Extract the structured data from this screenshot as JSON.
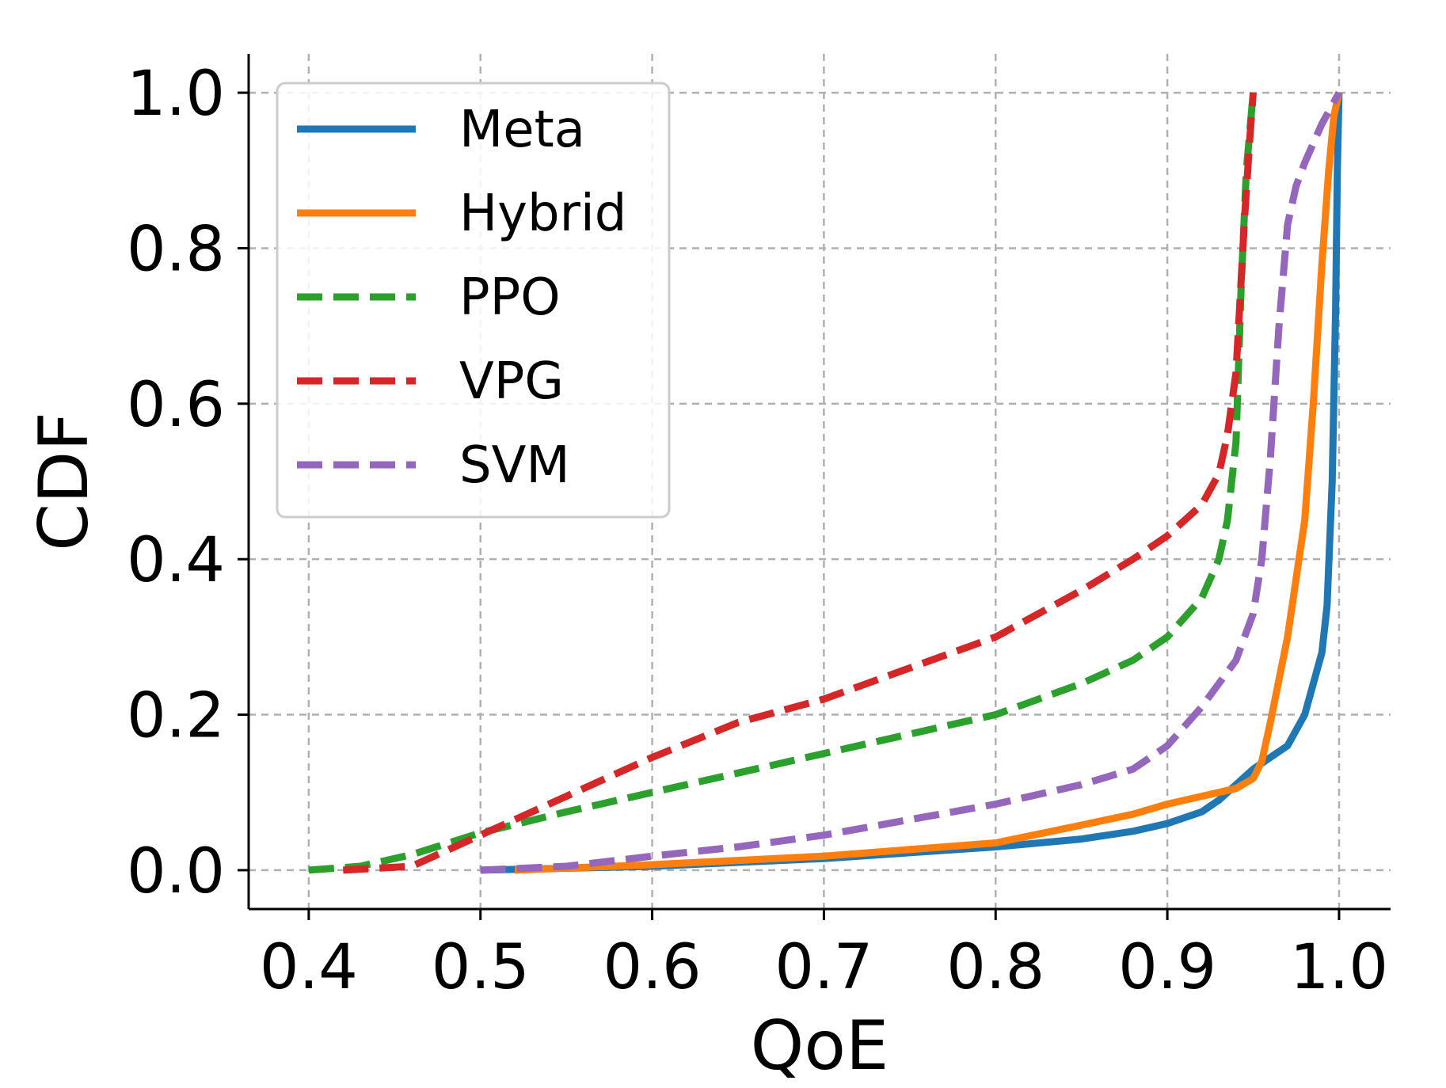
{
  "chart_data": {
    "type": "line",
    "title": "",
    "xlabel": "QoE",
    "ylabel": "CDF",
    "xlim": [
      0.365,
      1.03
    ],
    "ylim": [
      -0.05,
      1.05
    ],
    "xticks": [
      0.4,
      0.5,
      0.6,
      0.7,
      0.8,
      0.9,
      1.0
    ],
    "yticks": [
      0.0,
      0.2,
      0.4,
      0.6,
      0.8,
      1.0
    ],
    "xtick_labels": [
      "0.4",
      "0.5",
      "0.6",
      "0.7",
      "0.8",
      "0.9",
      "1.0"
    ],
    "ytick_labels": [
      "0.0",
      "0.2",
      "0.4",
      "0.6",
      "0.8",
      "1.0"
    ],
    "grid": true,
    "legend_position": "top-left",
    "series": [
      {
        "name": "Meta",
        "color": "#1f77b4",
        "dashed": false,
        "x": [
          0.5,
          0.6,
          0.7,
          0.8,
          0.85,
          0.88,
          0.9,
          0.92,
          0.93,
          0.94,
          0.95,
          0.96,
          0.97,
          0.98,
          0.99,
          0.993,
          0.996,
          0.998,
          0.999,
          1.0
        ],
        "y": [
          0.0,
          0.005,
          0.015,
          0.03,
          0.04,
          0.05,
          0.06,
          0.075,
          0.09,
          0.11,
          0.13,
          0.145,
          0.16,
          0.2,
          0.28,
          0.34,
          0.5,
          0.72,
          0.9,
          1.0
        ]
      },
      {
        "name": "Hybrid",
        "color": "#ff7f0e",
        "dashed": false,
        "x": [
          0.52,
          0.6,
          0.7,
          0.8,
          0.85,
          0.88,
          0.9,
          0.92,
          0.94,
          0.95,
          0.955,
          0.96,
          0.97,
          0.98,
          0.985,
          0.99,
          0.994,
          0.997,
          1.0
        ],
        "y": [
          0.0,
          0.007,
          0.018,
          0.035,
          0.058,
          0.072,
          0.085,
          0.095,
          0.105,
          0.118,
          0.14,
          0.19,
          0.3,
          0.45,
          0.6,
          0.78,
          0.9,
          0.97,
          1.0
        ]
      },
      {
        "name": "PPO",
        "color": "#2ca02c",
        "dashed": true,
        "x": [
          0.4,
          0.43,
          0.46,
          0.5,
          0.55,
          0.6,
          0.65,
          0.7,
          0.75,
          0.8,
          0.85,
          0.88,
          0.9,
          0.92,
          0.93,
          0.935,
          0.94,
          0.943,
          0.946,
          0.95
        ],
        "y": [
          0.0,
          0.005,
          0.02,
          0.048,
          0.075,
          0.1,
          0.125,
          0.15,
          0.175,
          0.2,
          0.24,
          0.27,
          0.3,
          0.35,
          0.4,
          0.45,
          0.55,
          0.75,
          0.9,
          1.0
        ]
      },
      {
        "name": "VPG",
        "color": "#d62728",
        "dashed": true,
        "x": [
          0.42,
          0.46,
          0.5,
          0.55,
          0.6,
          0.65,
          0.7,
          0.75,
          0.8,
          0.85,
          0.88,
          0.9,
          0.92,
          0.93,
          0.935,
          0.94,
          0.942,
          0.945,
          0.948,
          0.95
        ],
        "y": [
          0.0,
          0.005,
          0.045,
          0.095,
          0.145,
          0.19,
          0.22,
          0.26,
          0.3,
          0.36,
          0.4,
          0.43,
          0.47,
          0.51,
          0.56,
          0.64,
          0.72,
          0.84,
          0.94,
          1.0
        ]
      },
      {
        "name": "SVM",
        "color": "#9467bd",
        "dashed": true,
        "x": [
          0.5,
          0.55,
          0.6,
          0.65,
          0.7,
          0.75,
          0.8,
          0.85,
          0.88,
          0.9,
          0.92,
          0.94,
          0.95,
          0.955,
          0.96,
          0.965,
          0.97,
          0.975,
          0.98,
          0.99,
          1.0
        ],
        "y": [
          0.0,
          0.005,
          0.018,
          0.03,
          0.045,
          0.065,
          0.085,
          0.11,
          0.13,
          0.16,
          0.21,
          0.27,
          0.33,
          0.4,
          0.53,
          0.7,
          0.83,
          0.88,
          0.91,
          0.96,
          1.0
        ]
      }
    ]
  }
}
